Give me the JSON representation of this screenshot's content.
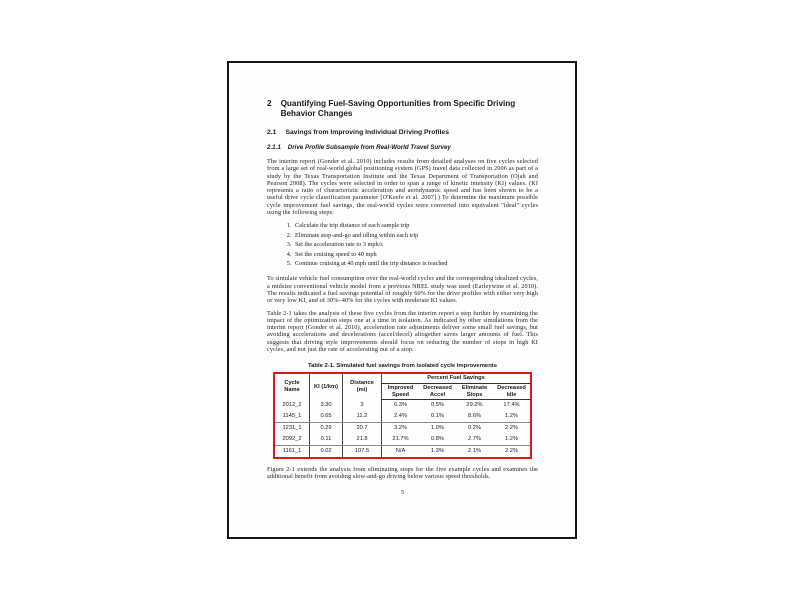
{
  "document": {
    "page_number": "5",
    "h1": {
      "number": "2",
      "text": "Quantifying Fuel-Saving Opportunities from Specific Driving Behavior Changes"
    },
    "h2": {
      "number": "2.1",
      "text": "Savings from Improving Individual Driving Profiles"
    },
    "h3": {
      "number": "2.1.1",
      "text": "Drive Profile Subsample from Real-World Travel Survey"
    },
    "paragraphs": {
      "p1": "The interim report (Gonder et al. 2010) includes results from detailed analyses on five cycles selected from a large set of real-world global positioning system (GPS) travel data collected in 2006 as part of a study by the Texas Transportation Institute and the Texas Department of Transportation (Ojah and Pearson 2008). The cycles were selected in order to span a range of kinetic intensity (KI) values. (KI represents a ratio of characteristic acceleration and aerodynamic speed and has been shown to be a useful drive cycle classification parameter [O'Keefe et al. 2007].) To determine the maximum possible cycle improvement fuel savings, the real-world cycles were converted into equivalent \"ideal\" cycles using the following steps:",
      "p2": "To simulate vehicle fuel consumption over the real-world cycles and the corresponding idealized cycles, a midsize conventional vehicle model from a previous NREL study was used (Earleywine et al. 2010). The results indicated a fuel savings potential of roughly 60% for the drive profiles with either very high or very low KI, and of 30%–40% for the cycles with moderate KI values.",
      "p3": "Table 2-1 takes the analysis of these five cycles from the interim report a step further by examining the impact of the optimization steps one at a time in isolation. As indicated by other simulations from the interim report (Gonder et al. 2010), acceleration rate adjustments deliver some small fuel savings, but avoiding accelerations and decelerations (accel/decel) altogether saves larger amounts of fuel. This suggests that driving style improvements should focus on reducing the number of stops in high KI cycles, and not just the rate of accelerating out of a stop.",
      "p4": "Figure 2-1 extends the analysis from eliminating stops for the five example cycles and examines the additional benefit from avoiding slow-and-go driving below various speed thresholds."
    },
    "steps": [
      "Calculate the trip distance of each sample trip",
      "Eliminate stop-and-go and idling within each trip",
      "Set the acceleration rate to 3 mph/s",
      "Set the cruising speed to 40 mph",
      "Continue cruising at 40 mph until the trip distance is reached"
    ],
    "table": {
      "caption": "Table 2-1. Simulated fuel savings from isolated cycle improvements",
      "highlight_border_color": "#e51313",
      "col_headers": {
        "cycle_name": "Cycle Name",
        "ki": "KI (1/km)",
        "distance": "Distance (mi)",
        "group": "Percent Fuel Savings",
        "sub": [
          "Improved Speed",
          "Decreased Accel",
          "Eliminate Stops",
          "Decreased Idle"
        ]
      },
      "rows": [
        {
          "cycle": "2012_2",
          "ki": "3.30",
          "dist": "3",
          "improved_speed": "6.3%",
          "decreased_accel": "0.5%",
          "eliminate_stops": "29.2%",
          "decreased_idle": "17.4%"
        },
        {
          "cycle": "1145_1",
          "ki": "0.65",
          "dist": "11.2",
          "improved_speed": "2.4%",
          "decreased_accel": "0.1%",
          "eliminate_stops": "8.6%",
          "decreased_idle": "1.2%"
        },
        {
          "cycle": "1231_1",
          "ki": "0.29",
          "dist": "20.7",
          "improved_speed": "3.2%",
          "decreased_accel": "1.0%",
          "eliminate_stops": "0.2%",
          "decreased_idle": "2.2%"
        },
        {
          "cycle": "2092_2",
          "ki": "0.11",
          "dist": "21.8",
          "improved_speed": "21.7%",
          "decreased_accel": "0.8%",
          "eliminate_stops": "2.7%",
          "decreased_idle": "1.2%"
        },
        {
          "cycle": "1161_1",
          "ki": "0.02",
          "dist": "107.5",
          "improved_speed": "N/A",
          "decreased_accel": "1.3%",
          "eliminate_stops": "2.1%",
          "decreased_idle": "2.2%"
        }
      ]
    }
  }
}
